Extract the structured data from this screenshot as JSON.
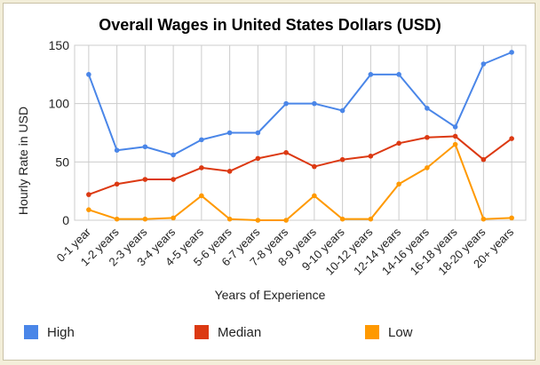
{
  "chart_data": {
    "type": "line",
    "title": "Overall Wages in United States Dollars (USD)",
    "xlabel": "Years of Experience",
    "ylabel": "Hourly Rate in USD",
    "ylim": [
      0,
      150
    ],
    "yticks": [
      0,
      50,
      100,
      150
    ],
    "grid": true,
    "legend_position": "bottom",
    "categories": [
      "0-1 year",
      "1-2 years",
      "2-3 years",
      "3-4 years",
      "4-5 years",
      "5-6 years",
      "6-7 years",
      "7-8 years",
      "8-9 years",
      "9-10 years",
      "10-12 years",
      "12-14 years",
      "14-16 years",
      "16-18 years",
      "18-20 years",
      "20+ years"
    ],
    "series": [
      {
        "name": "High",
        "color": "#4a86e8",
        "values": [
          125,
          60,
          63,
          56,
          69,
          75,
          75,
          100,
          100,
          94,
          125,
          125,
          96,
          80,
          134,
          144
        ]
      },
      {
        "name": "Median",
        "color": "#dc3912",
        "values": [
          22,
          31,
          35,
          35,
          45,
          42,
          53,
          58,
          46,
          52,
          55,
          66,
          71,
          72,
          52,
          70
        ]
      },
      {
        "name": "Low",
        "color": "#ff9900",
        "values": [
          9,
          1,
          1,
          2,
          21,
          1,
          0,
          0,
          21,
          1,
          1,
          31,
          45,
          65,
          1,
          2
        ]
      }
    ]
  }
}
